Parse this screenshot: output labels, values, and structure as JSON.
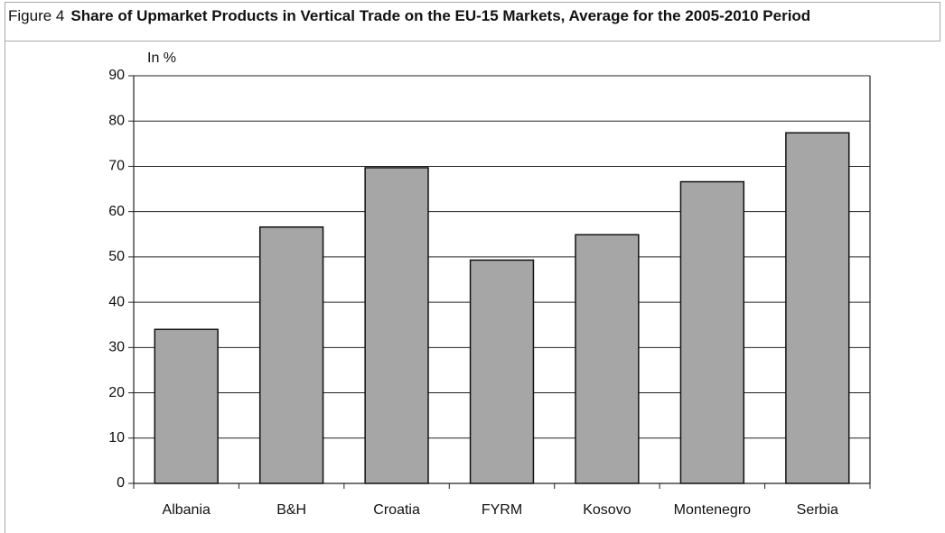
{
  "chart_data": {
    "type": "bar",
    "figure_label": "Figure 4",
    "title": "Share of Upmarket Products in Vertical Trade on the EU-15 Markets, Average for the 2005-2010 Period",
    "y_axis_label": "In %",
    "categories": [
      "Albania",
      "B&H",
      "Croatia",
      "FYRM",
      "Kosovo",
      "Montenegro",
      "Serbia"
    ],
    "values": [
      34,
      56.6,
      69.7,
      49.3,
      54.9,
      66.6,
      77.4
    ],
    "color": "#a6a6a6",
    "ylim": [
      0,
      90
    ],
    "yticks": [
      0,
      10,
      20,
      30,
      40,
      50,
      60,
      70,
      80,
      90
    ],
    "grid": true
  }
}
